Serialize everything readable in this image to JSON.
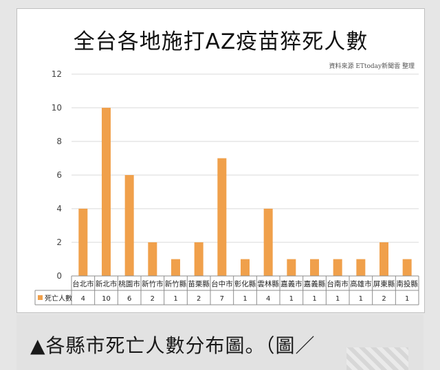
{
  "chart_data": {
    "type": "bar",
    "title": "全台各地施打AZ疫苗猝死人數",
    "source_credit": "資料來源 ETtoday新聞雲 整理",
    "categories": [
      "台北市",
      "新北市",
      "桃園市",
      "新竹市",
      "新竹縣",
      "苗栗縣",
      "台中市",
      "彰化縣",
      "雲林縣",
      "嘉義市",
      "嘉義縣",
      "台南市",
      "高雄市",
      "屏東縣",
      "南投縣"
    ],
    "series": [
      {
        "name": "死亡人數",
        "values": [
          4,
          10,
          6,
          2,
          1,
          2,
          7,
          1,
          4,
          1,
          1,
          1,
          1,
          2,
          1
        ]
      }
    ],
    "ylim": [
      0,
      12
    ],
    "yticks": [
      0,
      2,
      4,
      6,
      8,
      10,
      12
    ],
    "grid": true,
    "legend": "data-table",
    "bar_color": "#F0A04B"
  },
  "caption": "▲各縣市死亡人數分布圖。（圖／"
}
